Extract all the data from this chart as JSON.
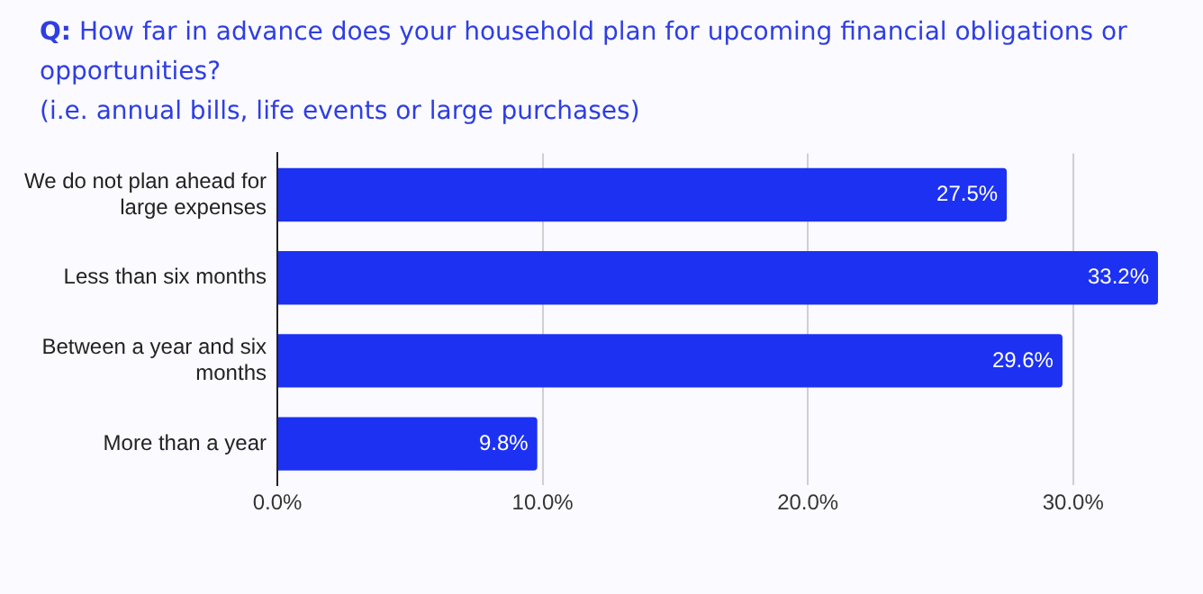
{
  "chart_data": {
    "type": "bar",
    "orientation": "horizontal",
    "title": "Q: How far in advance does your household plan for upcoming financial obligations or opportunities?",
    "subtitle": "(i.e. annual bills, life events or large purchases)",
    "categories": [
      "We do not plan ahead for large expenses",
      "Less than six months",
      "Between a year and six months",
      "More than a year"
    ],
    "values": [
      27.5,
      33.2,
      29.6,
      9.8
    ],
    "value_labels": [
      "27.5%",
      "33.2%",
      "29.6%",
      "9.8%"
    ],
    "color": "#1c31f2",
    "xlim": [
      0,
      33.2
    ],
    "xticks": [
      {
        "value": 0,
        "label": "0.0%"
      },
      {
        "value": 10,
        "label": "10.0%"
      },
      {
        "value": 20,
        "label": "20.0%"
      },
      {
        "value": 30,
        "label": "30.0%"
      }
    ],
    "grid": "x",
    "legend": false
  }
}
